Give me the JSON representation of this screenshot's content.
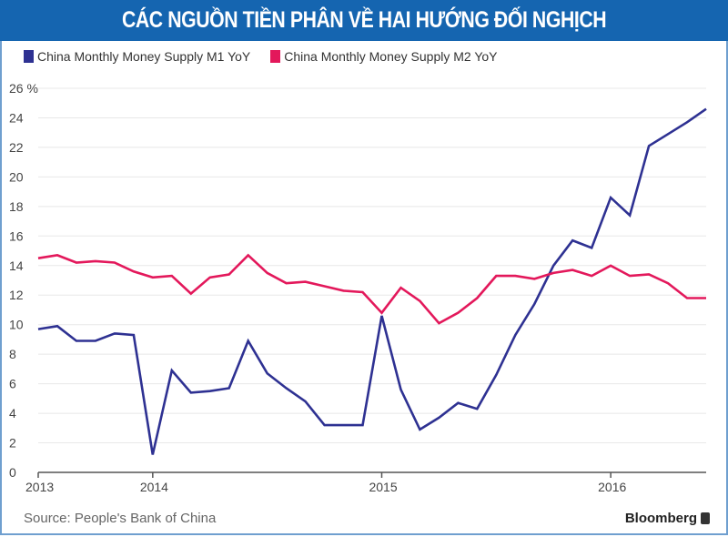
{
  "header": {
    "title": "CÁC NGUỒN TIỀN PHÂN VỀ HAI HƯỚNG ĐỐI NGHỊCH",
    "color": "#1565b0"
  },
  "footer": {
    "source": "Source: People's Bank of China",
    "brand": "Bloomberg"
  },
  "chart_data": {
    "type": "line",
    "title": "CÁC NGUỒN TIỀN PHÂN VỀ HAI HƯỚNG ĐỐI NGHỊCH",
    "ylabel": "",
    "xlabel": "",
    "ylim": [
      0,
      26
    ],
    "yticks": [
      "0",
      "2",
      "4",
      "6",
      "8",
      "10",
      "12",
      "14",
      "16",
      "18",
      "20",
      "22",
      "24",
      "26 %"
    ],
    "xticks": [
      "2013",
      "2014",
      "2015",
      "2016"
    ],
    "grid": true,
    "legend": "top-left",
    "x": [
      "2013-07",
      "2013-08",
      "2013-09",
      "2013-10",
      "2013-11",
      "2013-12",
      "2014-01",
      "2014-02",
      "2014-03",
      "2014-04",
      "2014-05",
      "2014-06",
      "2014-07",
      "2014-08",
      "2014-09",
      "2014-10",
      "2014-11",
      "2014-12",
      "2015-01",
      "2015-02",
      "2015-03",
      "2015-04",
      "2015-05",
      "2015-06",
      "2015-07",
      "2015-08",
      "2015-09",
      "2015-10",
      "2015-11",
      "2015-12",
      "2016-01",
      "2016-02",
      "2016-03",
      "2016-04",
      "2016-05",
      "2016-06"
    ],
    "series": [
      {
        "name": "China Monthly Money Supply M1 YoY",
        "color": "#2e3192",
        "values": [
          9.7,
          9.9,
          8.9,
          8.9,
          9.4,
          9.3,
          1.2,
          6.9,
          5.4,
          5.5,
          5.7,
          8.9,
          6.7,
          5.7,
          4.8,
          3.2,
          3.2,
          3.2,
          10.6,
          5.6,
          2.9,
          3.7,
          4.7,
          4.3,
          6.6,
          9.3,
          11.4,
          14.0,
          15.7,
          15.2,
          18.6,
          17.4,
          22.1,
          22.9,
          23.7,
          24.6
        ]
      },
      {
        "name": "China Monthly Money Supply M2 YoY",
        "color": "#e3185b",
        "values": [
          14.5,
          14.7,
          14.2,
          14.3,
          14.2,
          13.6,
          13.2,
          13.3,
          12.1,
          13.2,
          13.4,
          14.7,
          13.5,
          12.8,
          12.9,
          12.6,
          12.3,
          12.2,
          10.8,
          12.5,
          11.6,
          10.1,
          10.8,
          11.8,
          13.3,
          13.3,
          13.1,
          13.5,
          13.7,
          13.3,
          14.0,
          13.3,
          13.4,
          12.8,
          11.8,
          11.8
        ]
      }
    ]
  }
}
